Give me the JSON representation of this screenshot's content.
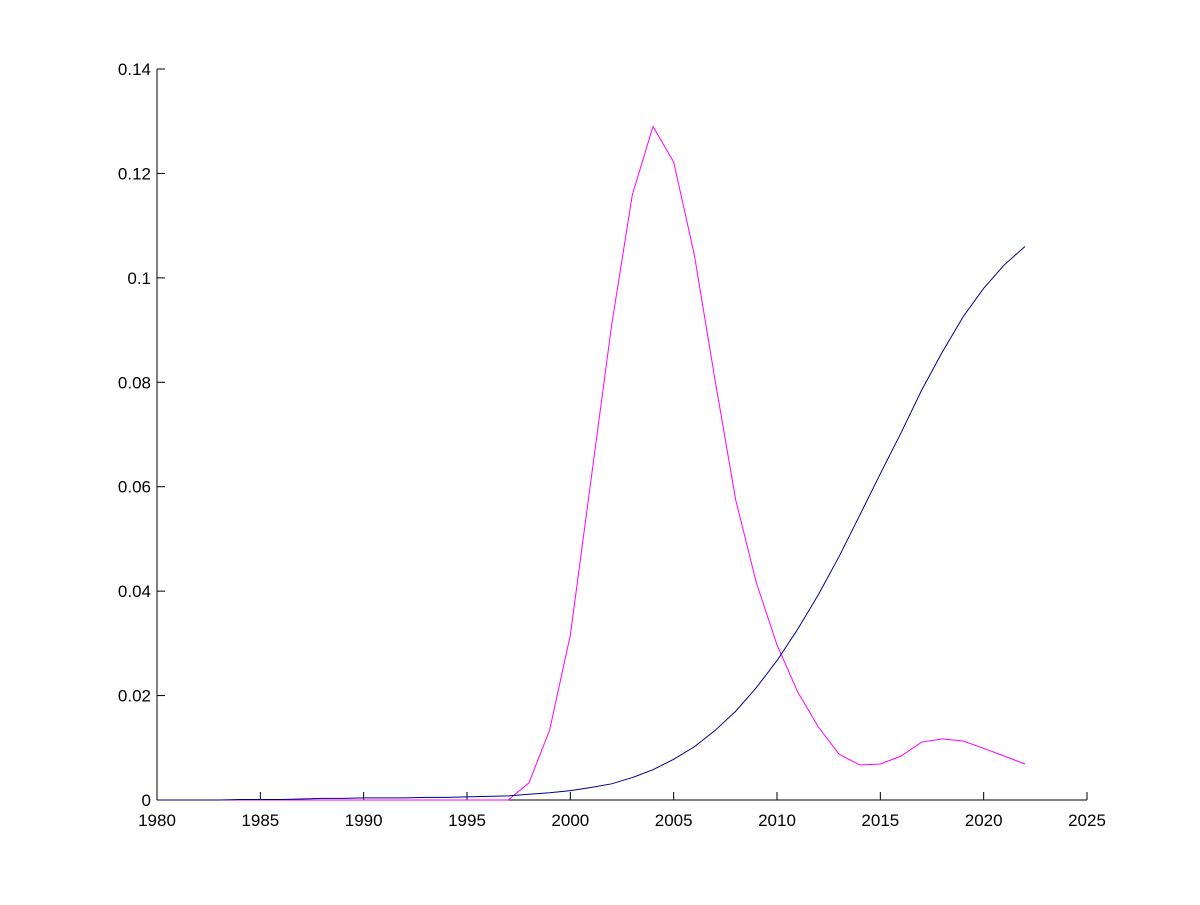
{
  "chart_data": {
    "type": "line",
    "x": [
      1980,
      1981,
      1982,
      1983,
      1984,
      1985,
      1986,
      1987,
      1988,
      1989,
      1990,
      1991,
      1992,
      1993,
      1994,
      1995,
      1996,
      1997,
      1998,
      1999,
      2000,
      2001,
      2002,
      2003,
      2004,
      2005,
      2006,
      2007,
      2008,
      2009,
      2010,
      2011,
      2012,
      2013,
      2014,
      2015,
      2016,
      2017,
      2018,
      2019,
      2020,
      2021,
      2022
    ],
    "series": [
      {
        "color": "#ff00ff",
        "values": [
          0,
          0,
          0,
          0,
          0,
          0,
          0,
          0,
          0,
          0,
          0,
          0,
          0,
          0,
          0,
          0,
          0,
          0,
          0.0033,
          0.0134,
          0.0316,
          0.0613,
          0.091,
          0.1159,
          0.129,
          0.1222,
          0.1044,
          0.0805,
          0.0575,
          0.0416,
          0.0297,
          0.0207,
          0.014,
          0.0088,
          0.0067,
          0.0069,
          0.0084,
          0.0111,
          0.0117,
          0.0113,
          0.0099,
          0.0084,
          0.0069
        ]
      },
      {
        "color": "#00008b",
        "values": [
          0,
          0,
          0,
          0,
          0.0001,
          0.0001,
          0.0001,
          0.0002,
          0.0003,
          0.0003,
          0.0004,
          0.0004,
          0.0004,
          0.0005,
          0.0005,
          0.0006,
          0.0007,
          0.0008,
          0.0011,
          0.0014,
          0.0018,
          0.0024,
          0.0031,
          0.0043,
          0.0058,
          0.0078,
          0.0102,
          0.0133,
          0.017,
          0.0215,
          0.0267,
          0.0327,
          0.0393,
          0.0466,
          0.0545,
          0.0625,
          0.0703,
          0.0785,
          0.0858,
          0.0925,
          0.098,
          0.1025,
          0.106
        ]
      }
    ],
    "xlim": [
      1980,
      2025
    ],
    "xticks": [
      1980,
      1985,
      1990,
      1995,
      2000,
      2005,
      2010,
      2015,
      2020,
      2025
    ],
    "ylim": [
      0,
      0.14
    ],
    "yticks": [
      0,
      0.02,
      0.04,
      0.06,
      0.08,
      0.1,
      0.12,
      0.14
    ]
  }
}
